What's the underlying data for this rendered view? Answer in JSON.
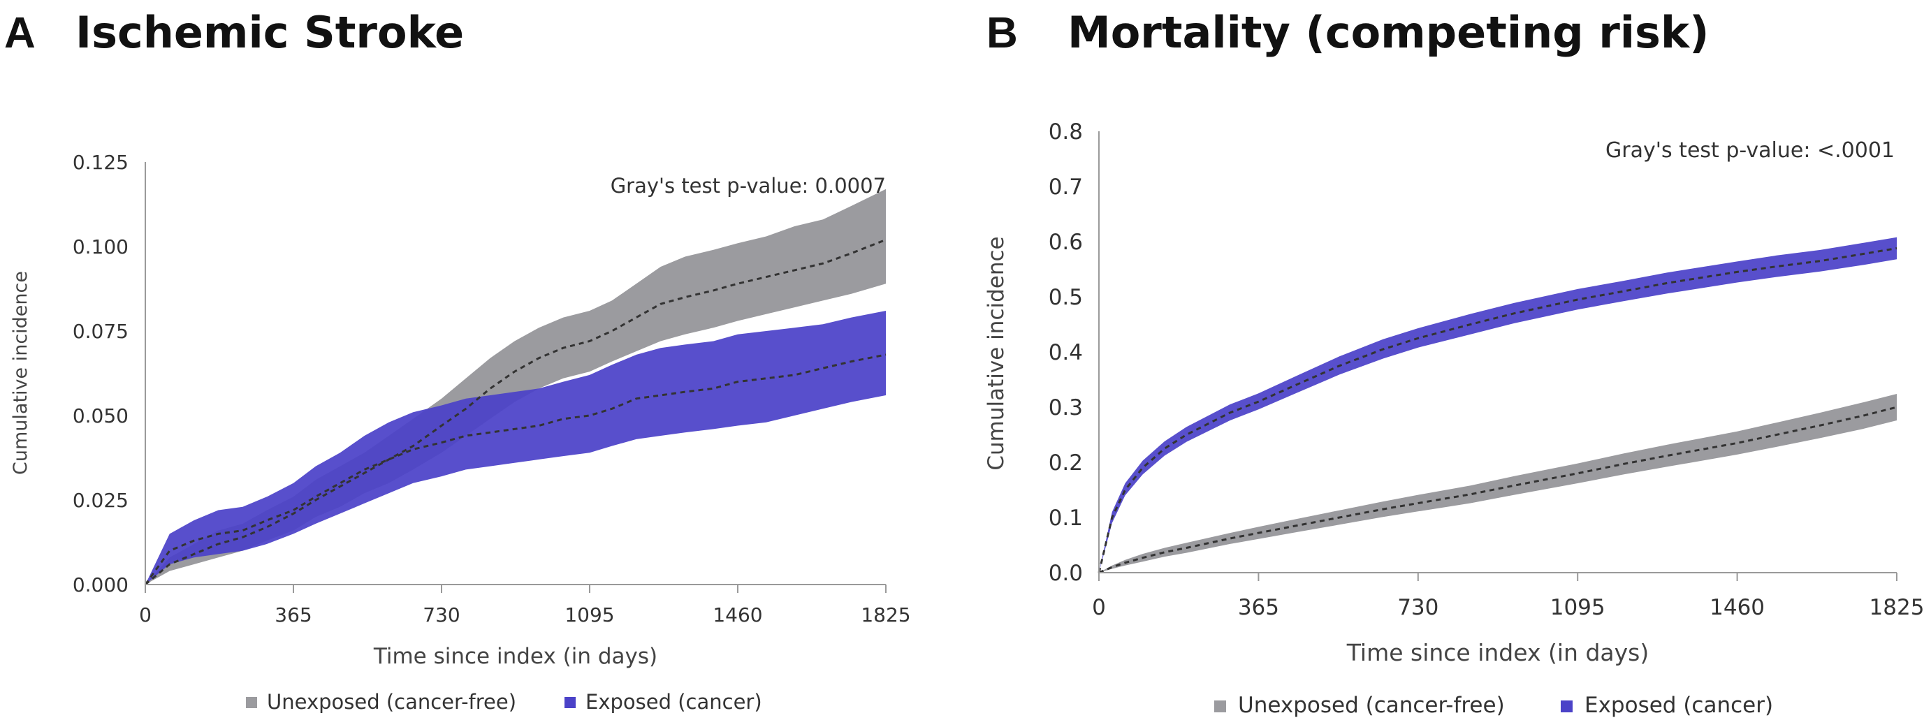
{
  "colors": {
    "unexposed_band": "#9b9b9f",
    "exposed_band": "#4b42c8",
    "mean_line": "#333333",
    "axis": "#9a9a9a"
  },
  "chart_data": [
    {
      "panel_label": "A",
      "title": "Ischemic Stroke",
      "type": "area",
      "xlabel": "Time since index (in days)",
      "ylabel": "Cumulative incidence",
      "xlim": [
        0,
        1825
      ],
      "ylim": [
        0,
        0.125
      ],
      "xticks": [
        "0",
        "365",
        "730",
        "1095",
        "1460",
        "1825"
      ],
      "yticks": [
        "0.000",
        "0.025",
        "0.050",
        "0.075",
        "0.100",
        "0.125"
      ],
      "annotation": "Gray's test p-value: 0.0007",
      "legend": [
        {
          "label": "Unexposed (cancer-free)",
          "color": "#9b9b9f"
        },
        {
          "label": "Exposed (cancer)",
          "color": "#4b42c8"
        }
      ],
      "series": [
        {
          "name": "Unexposed (cancer-free)",
          "x": [
            0,
            60,
            120,
            180,
            240,
            300,
            365,
            420,
            480,
            540,
            600,
            660,
            730,
            790,
            850,
            910,
            970,
            1030,
            1095,
            1150,
            1210,
            1270,
            1330,
            1400,
            1460,
            1530,
            1600,
            1670,
            1740,
            1825
          ],
          "values": [
            0.0,
            0.006,
            0.009,
            0.012,
            0.014,
            0.017,
            0.021,
            0.025,
            0.029,
            0.033,
            0.037,
            0.041,
            0.047,
            0.052,
            0.058,
            0.063,
            0.067,
            0.07,
            0.072,
            0.075,
            0.079,
            0.083,
            0.085,
            0.087,
            0.089,
            0.091,
            0.093,
            0.095,
            0.098,
            0.102
          ],
          "lower": [
            0.0,
            0.004,
            0.006,
            0.008,
            0.01,
            0.013,
            0.016,
            0.02,
            0.023,
            0.027,
            0.03,
            0.034,
            0.039,
            0.044,
            0.049,
            0.054,
            0.058,
            0.061,
            0.063,
            0.066,
            0.069,
            0.072,
            0.074,
            0.076,
            0.078,
            0.08,
            0.082,
            0.084,
            0.086,
            0.089
          ],
          "upper": [
            0.0,
            0.008,
            0.012,
            0.016,
            0.018,
            0.022,
            0.026,
            0.031,
            0.035,
            0.039,
            0.044,
            0.049,
            0.055,
            0.061,
            0.067,
            0.072,
            0.076,
            0.079,
            0.081,
            0.084,
            0.089,
            0.094,
            0.097,
            0.099,
            0.101,
            0.103,
            0.106,
            0.108,
            0.112,
            0.117
          ]
        },
        {
          "name": "Exposed (cancer)",
          "x": [
            0,
            60,
            120,
            180,
            240,
            300,
            365,
            420,
            480,
            540,
            600,
            660,
            730,
            790,
            850,
            910,
            970,
            1030,
            1095,
            1150,
            1210,
            1270,
            1330,
            1400,
            1460,
            1530,
            1600,
            1670,
            1740,
            1825
          ],
          "values": [
            0.0,
            0.01,
            0.013,
            0.015,
            0.016,
            0.019,
            0.022,
            0.026,
            0.03,
            0.034,
            0.037,
            0.04,
            0.042,
            0.044,
            0.045,
            0.046,
            0.047,
            0.049,
            0.05,
            0.052,
            0.055,
            0.056,
            0.057,
            0.058,
            0.06,
            0.061,
            0.062,
            0.064,
            0.066,
            0.068
          ],
          "lower": [
            0.0,
            0.006,
            0.008,
            0.009,
            0.01,
            0.012,
            0.015,
            0.018,
            0.021,
            0.024,
            0.027,
            0.03,
            0.032,
            0.034,
            0.035,
            0.036,
            0.037,
            0.038,
            0.039,
            0.041,
            0.043,
            0.044,
            0.045,
            0.046,
            0.047,
            0.048,
            0.05,
            0.052,
            0.054,
            0.056
          ],
          "upper": [
            0.0,
            0.015,
            0.019,
            0.022,
            0.023,
            0.026,
            0.03,
            0.035,
            0.039,
            0.044,
            0.048,
            0.051,
            0.053,
            0.055,
            0.056,
            0.057,
            0.058,
            0.06,
            0.062,
            0.065,
            0.068,
            0.07,
            0.071,
            0.072,
            0.074,
            0.075,
            0.076,
            0.077,
            0.079,
            0.081
          ]
        }
      ]
    },
    {
      "panel_label": "B",
      "title": "Mortality (competing risk)",
      "type": "area",
      "xlabel": "Time since index (in days)",
      "ylabel": "Cumulative incidence",
      "xlim": [
        0,
        1825
      ],
      "ylim": [
        0,
        0.8
      ],
      "xticks": [
        "0",
        "365",
        "730",
        "1095",
        "1460",
        "1825"
      ],
      "yticks": [
        "0.0",
        "0.1",
        "0.2",
        "0.3",
        "0.4",
        "0.5",
        "0.6",
        "0.7",
        "0.8"
      ],
      "annotation": "Gray's test p-value: <.0001",
      "legend": [
        {
          "label": "Unexposed (cancer-free)",
          "color": "#9b9b9f"
        },
        {
          "label": "Exposed (cancer)",
          "color": "#4b42c8"
        }
      ],
      "series": [
        {
          "name": "Unexposed (cancer-free)",
          "x": [
            0,
            30,
            60,
            100,
            150,
            200,
            300,
            365,
            450,
            550,
            650,
            730,
            850,
            950,
            1095,
            1200,
            1300,
            1460,
            1550,
            1650,
            1750,
            1825
          ],
          "values": [
            0.0,
            0.01,
            0.018,
            0.027,
            0.037,
            0.045,
            0.062,
            0.072,
            0.085,
            0.1,
            0.115,
            0.126,
            0.142,
            0.158,
            0.18,
            0.197,
            0.212,
            0.235,
            0.25,
            0.267,
            0.285,
            0.3
          ],
          "lower": [
            0.0,
            0.007,
            0.013,
            0.02,
            0.029,
            0.036,
            0.052,
            0.061,
            0.073,
            0.087,
            0.101,
            0.111,
            0.126,
            0.141,
            0.162,
            0.178,
            0.192,
            0.214,
            0.228,
            0.244,
            0.261,
            0.276
          ],
          "upper": [
            0.0,
            0.013,
            0.023,
            0.034,
            0.045,
            0.054,
            0.072,
            0.083,
            0.097,
            0.113,
            0.129,
            0.141,
            0.158,
            0.175,
            0.198,
            0.216,
            0.232,
            0.256,
            0.272,
            0.29,
            0.309,
            0.324
          ]
        },
        {
          "name": "Exposed (cancer)",
          "x": [
            0,
            30,
            60,
            100,
            150,
            200,
            300,
            365,
            450,
            550,
            650,
            730,
            850,
            950,
            1095,
            1200,
            1300,
            1460,
            1550,
            1650,
            1750,
            1825
          ],
          "values": [
            0.0,
            0.1,
            0.15,
            0.19,
            0.225,
            0.25,
            0.29,
            0.31,
            0.34,
            0.375,
            0.405,
            0.425,
            0.45,
            0.47,
            0.495,
            0.51,
            0.525,
            0.545,
            0.555,
            0.565,
            0.578,
            0.588
          ],
          "lower": [
            0.0,
            0.09,
            0.14,
            0.178,
            0.212,
            0.237,
            0.276,
            0.296,
            0.325,
            0.359,
            0.388,
            0.408,
            0.432,
            0.452,
            0.477,
            0.492,
            0.506,
            0.526,
            0.536,
            0.546,
            0.558,
            0.568
          ],
          "upper": [
            0.0,
            0.11,
            0.162,
            0.203,
            0.238,
            0.264,
            0.305,
            0.325,
            0.356,
            0.392,
            0.423,
            0.443,
            0.469,
            0.489,
            0.514,
            0.529,
            0.544,
            0.564,
            0.575,
            0.585,
            0.598,
            0.608
          ]
        }
      ]
    }
  ]
}
